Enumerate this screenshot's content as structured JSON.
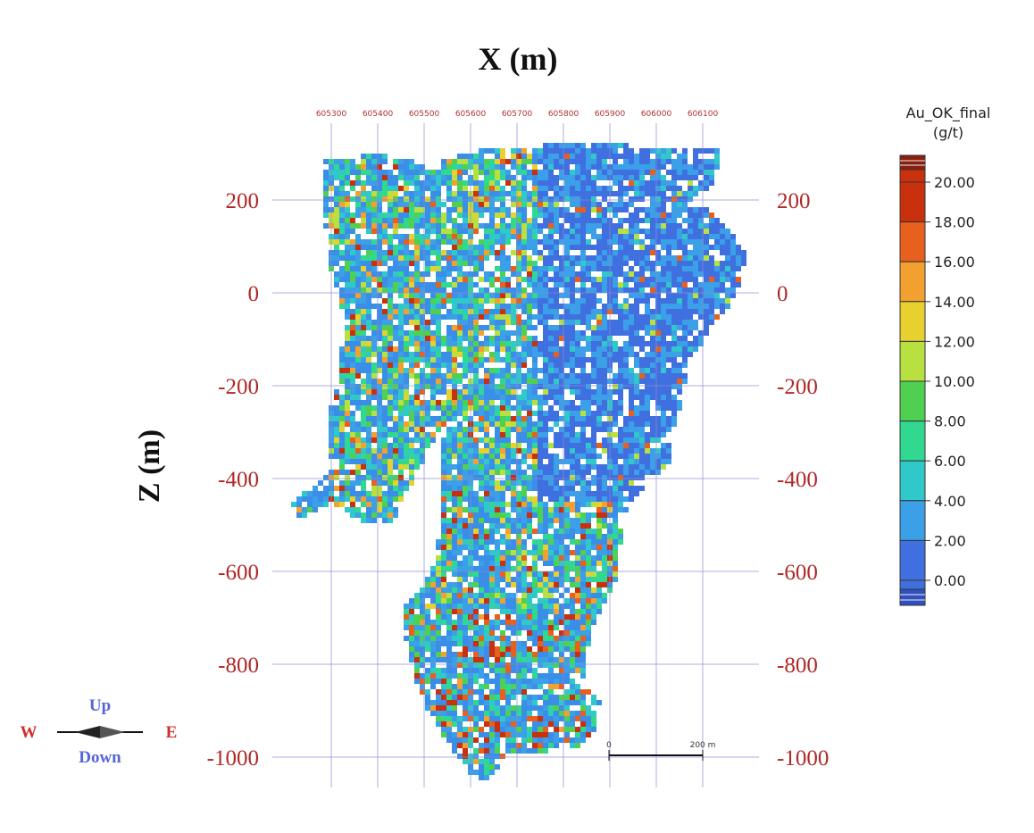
{
  "x_axis": {
    "title": "X (m)",
    "ticks": [
      605300,
      605400,
      605500,
      605600,
      605700,
      605800,
      605900,
      606000,
      606100
    ]
  },
  "z_axis": {
    "title": "Z (m)",
    "ticks": [
      200,
      0,
      -200,
      -400,
      -600,
      -800,
      -1000
    ]
  },
  "legend": {
    "title": "Au_OK_final",
    "unit": "(g/t)",
    "labels": [
      {
        "value": 20,
        "label": "20.00"
      },
      {
        "value": 18,
        "label": "18.00"
      },
      {
        "value": 16,
        "label": "16.00"
      },
      {
        "value": 14,
        "label": "14.00"
      },
      {
        "value": 12,
        "label": "12.00"
      },
      {
        "value": 10,
        "label": "10.00"
      },
      {
        "value": 8,
        "label": "8.00"
      },
      {
        "value": 6,
        "label": "6.00"
      },
      {
        "value": 4,
        "label": "4.00"
      },
      {
        "value": 2,
        "label": "2.00"
      },
      {
        "value": 0,
        "label": "0.00"
      }
    ],
    "colors": [
      "#c8300e",
      "#e8601e",
      "#f2a030",
      "#e8d030",
      "#b8e040",
      "#50d050",
      "#30d890",
      "#30c8c8",
      "#3ba0e8",
      "#4070e0"
    ]
  },
  "compass": {
    "up": "Up",
    "down": "Down",
    "west": "W",
    "east": "E"
  },
  "scale_bar": {
    "start": "0",
    "end": "200 m"
  }
}
